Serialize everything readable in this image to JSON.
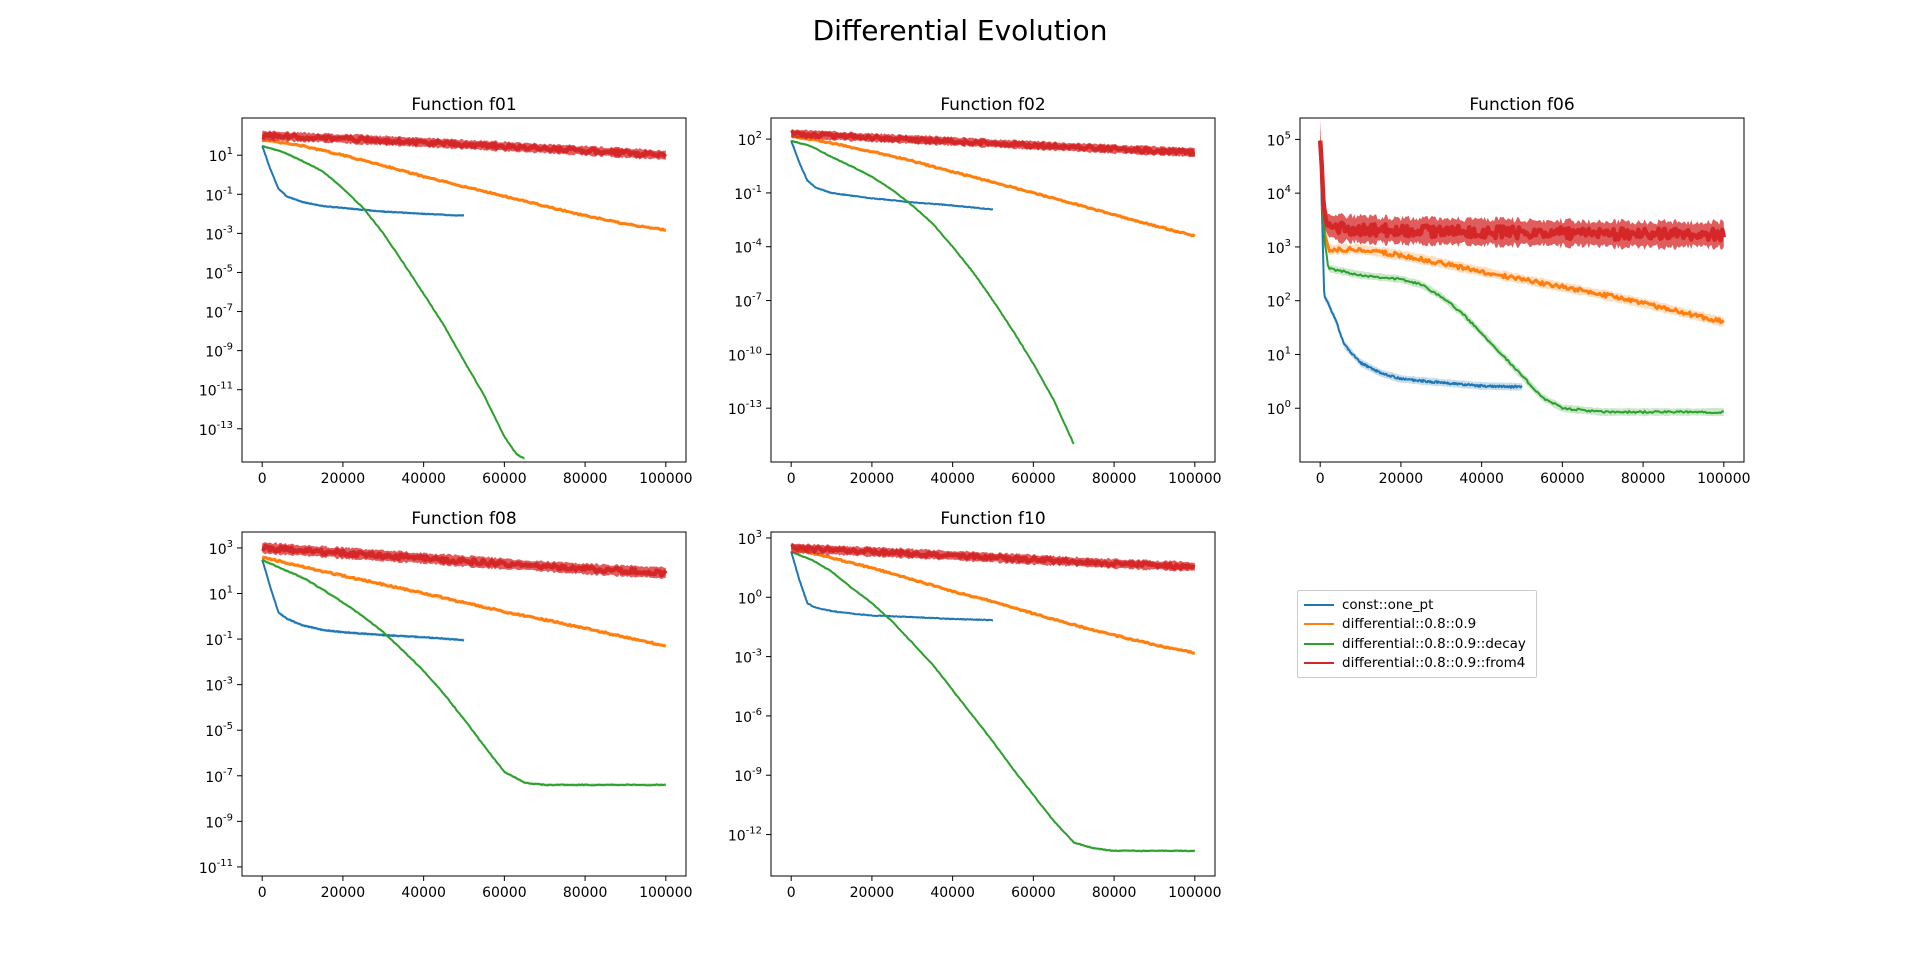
{
  "title": "Differential Evolution",
  "legend": {
    "placement": "right, below top-right subplot",
    "entries": [
      {
        "label": "const::one_pt",
        "color": "#1f77b4"
      },
      {
        "label": "differential::0.8::0.9",
        "color": "#ff7f0e"
      },
      {
        "label": "differential::0.8::0.9::decay",
        "color": "#2ca02c"
      },
      {
        "label": "differential::0.8::0.9::from4",
        "color": "#d62728"
      }
    ]
  },
  "chart_data": [
    {
      "type": "line",
      "title": "Function f01",
      "yscale": "log",
      "xlim": [
        -5000,
        105000
      ],
      "ylim": [
        2e-15,
        800
      ],
      "xticks": [
        0,
        20000,
        40000,
        60000,
        80000,
        100000
      ],
      "xtick_labels": [
        "0",
        "20000",
        "40000",
        "60000",
        "80000",
        "100000"
      ],
      "yticks": [
        10,
        0.1,
        0.001,
        1e-05,
        1e-07,
        1e-09,
        1e-11,
        1e-13
      ],
      "ytick_labels": [
        [
          "10",
          "1"
        ],
        [
          "10",
          "-1"
        ],
        [
          "10",
          "-3"
        ],
        [
          "10",
          "-5"
        ],
        [
          "10",
          "-7"
        ],
        [
          "10",
          "-9"
        ],
        [
          "10",
          "-11"
        ],
        [
          "10",
          "-13"
        ]
      ],
      "series": [
        {
          "name": "const::one_pt",
          "color": "#1f77b4",
          "band": true,
          "x": [
            0,
            2000,
            4000,
            6000,
            10000,
            15000,
            20000,
            30000,
            40000,
            50000
          ],
          "y": [
            30,
            2,
            0.2,
            0.08,
            0.04,
            0.025,
            0.02,
            0.013,
            0.01,
            0.008
          ]
        },
        {
          "name": "differential::0.8::0.9",
          "color": "#ff7f0e",
          "band": true,
          "x": [
            0,
            10000,
            20000,
            30000,
            40000,
            50000,
            60000,
            70000,
            80000,
            90000,
            100000
          ],
          "y": [
            60,
            30,
            10,
            3,
            0.8,
            0.25,
            0.08,
            0.025,
            0.008,
            0.003,
            0.0015
          ]
        },
        {
          "name": "differential::0.8::0.9::decay",
          "color": "#2ca02c",
          "band": true,
          "x": [
            0,
            5000,
            10000,
            15000,
            20000,
            25000,
            30000,
            35000,
            40000,
            45000,
            50000,
            55000,
            60000,
            63000,
            65000
          ],
          "y": [
            30,
            15,
            5,
            1.5,
            0.2,
            0.02,
            0.001,
            3e-05,
            8e-07,
            2e-08,
            3e-10,
            5e-12,
            4e-14,
            5e-15,
            3e-15
          ]
        },
        {
          "name": "differential::0.8::0.9::from4",
          "color": "#d62728",
          "band": true,
          "x": [
            0,
            20000,
            40000,
            60000,
            80000,
            100000
          ],
          "y": [
            100,
            70,
            45,
            28,
            17,
            10
          ]
        }
      ]
    },
    {
      "type": "line",
      "title": "Function f02",
      "yscale": "log",
      "xlim": [
        -5000,
        105000
      ],
      "ylim": [
        1e-16,
        1500
      ],
      "xticks": [
        0,
        20000,
        40000,
        60000,
        80000,
        100000
      ],
      "xtick_labels": [
        "0",
        "20000",
        "40000",
        "60000",
        "80000",
        "100000"
      ],
      "yticks": [
        100,
        0.1,
        0.0001,
        1e-07,
        1e-10,
        1e-13
      ],
      "ytick_labels": [
        [
          "10",
          "2"
        ],
        [
          "10",
          "-1"
        ],
        [
          "10",
          "-4"
        ],
        [
          "10",
          "-7"
        ],
        [
          "10",
          "-10"
        ],
        [
          "10",
          "-13"
        ]
      ],
      "series": [
        {
          "name": "const::one_pt",
          "color": "#1f77b4",
          "band": false,
          "x": [
            0,
            2000,
            4000,
            6000,
            10000,
            15000,
            20000,
            30000,
            40000,
            50000
          ],
          "y": [
            80,
            5,
            0.5,
            0.2,
            0.1,
            0.07,
            0.05,
            0.03,
            0.02,
            0.012
          ]
        },
        {
          "name": "differential::0.8::0.9",
          "color": "#ff7f0e",
          "band": true,
          "x": [
            0,
            10000,
            20000,
            30000,
            40000,
            50000,
            60000,
            70000,
            80000,
            90000,
            100000
          ],
          "y": [
            150,
            60,
            20,
            6,
            1.5,
            0.4,
            0.1,
            0.025,
            0.006,
            0.0015,
            0.0004
          ]
        },
        {
          "name": "differential::0.8::0.9::decay",
          "color": "#2ca02c",
          "band": true,
          "x": [
            0,
            5000,
            10000,
            15000,
            20000,
            25000,
            30000,
            35000,
            40000,
            45000,
            50000,
            55000,
            60000,
            65000,
            68000,
            70000
          ],
          "y": [
            80,
            40,
            10,
            3,
            0.8,
            0.15,
            0.02,
            0.002,
            0.0001,
            4e-06,
            1e-07,
            2e-09,
            3e-11,
            3e-13,
            1e-14,
            1e-15
          ]
        },
        {
          "name": "differential::0.8::0.9::from4",
          "color": "#d62728",
          "band": true,
          "x": [
            0,
            20000,
            40000,
            60000,
            80000,
            100000
          ],
          "y": [
            200,
            120,
            75,
            45,
            28,
            18
          ]
        }
      ]
    },
    {
      "type": "line",
      "title": "Function f06",
      "yscale": "log",
      "xlim": [
        -5000,
        105000
      ],
      "ylim": [
        0.1,
        250000
      ],
      "xticks": [
        0,
        20000,
        40000,
        60000,
        80000,
        100000
      ],
      "xtick_labels": [
        "0",
        "20000",
        "40000",
        "60000",
        "80000",
        "100000"
      ],
      "yticks": [
        100000,
        10000,
        1000,
        100,
        10,
        1
      ],
      "ytick_labels": [
        [
          "10",
          "5"
        ],
        [
          "10",
          "4"
        ],
        [
          "10",
          "3"
        ],
        [
          "10",
          "2"
        ],
        [
          "10",
          "1"
        ],
        [
          "10",
          "0"
        ]
      ],
      "series": [
        {
          "name": "const::one_pt",
          "color": "#1f77b4",
          "band": true,
          "x": [
            0,
            500,
            1000,
            2000,
            4000,
            6000,
            10000,
            15000,
            20000,
            30000,
            40000,
            50000
          ],
          "y": [
            100000,
            3000,
            120,
            90,
            40,
            15,
            7,
            4.5,
            3.5,
            3,
            2.6,
            2.5
          ]
        },
        {
          "name": "differential::0.8::0.9",
          "color": "#ff7f0e",
          "band": true,
          "x": [
            0,
            1000,
            2000,
            10000,
            20000,
            30000,
            40000,
            50000,
            60000,
            70000,
            80000,
            90000,
            100000
          ],
          "y": [
            100000,
            2000,
            900,
            900,
            700,
            500,
            350,
            250,
            180,
            130,
            90,
            60,
            40
          ]
        },
        {
          "name": "differential::0.8::0.9::decay",
          "color": "#2ca02c",
          "band": true,
          "x": [
            0,
            1000,
            2000,
            10000,
            20000,
            25000,
            30000,
            35000,
            40000,
            45000,
            50000,
            55000,
            60000,
            70000,
            100000
          ],
          "y": [
            100000,
            1500,
            400,
            300,
            250,
            200,
            120,
            60,
            25,
            10,
            4,
            1.6,
            1.0,
            0.85,
            0.85
          ]
        },
        {
          "name": "differential::0.8::0.9::from4",
          "color": "#d62728",
          "band": true,
          "x": [
            0,
            1000,
            2000,
            5000,
            20000,
            40000,
            60000,
            80000,
            100000
          ],
          "y": [
            120000,
            4000,
            2500,
            2200,
            2000,
            1900,
            1800,
            1700,
            1700
          ]
        }
      ]
    },
    {
      "type": "line",
      "title": "Function f08",
      "yscale": "log",
      "xlim": [
        -5000,
        105000
      ],
      "ylim": [
        4e-12,
        5000
      ],
      "xticks": [
        0,
        20000,
        40000,
        60000,
        80000,
        100000
      ],
      "xtick_labels": [
        "0",
        "20000",
        "40000",
        "60000",
        "80000",
        "100000"
      ],
      "yticks": [
        1000,
        10,
        0.1,
        0.001,
        1e-05,
        1e-07,
        1e-09,
        1e-11
      ],
      "ytick_labels": [
        [
          "10",
          "3"
        ],
        [
          "10",
          "1"
        ],
        [
          "10",
          "-1"
        ],
        [
          "10",
          "-3"
        ],
        [
          "10",
          "-5"
        ],
        [
          "10",
          "-7"
        ],
        [
          "10",
          "-9"
        ],
        [
          "10",
          "-11"
        ]
      ],
      "series": [
        {
          "name": "const::one_pt",
          "color": "#1f77b4",
          "band": true,
          "x": [
            0,
            2000,
            4000,
            6000,
            10000,
            15000,
            20000,
            30000,
            40000,
            50000
          ],
          "y": [
            300,
            20,
            1.5,
            0.8,
            0.4,
            0.25,
            0.2,
            0.15,
            0.12,
            0.09
          ]
        },
        {
          "name": "differential::0.8::0.9",
          "color": "#ff7f0e",
          "band": true,
          "x": [
            0,
            10000,
            20000,
            30000,
            40000,
            50000,
            60000,
            70000,
            80000,
            90000,
            100000
          ],
          "y": [
            400,
            150,
            60,
            25,
            10,
            4,
            1.6,
            0.7,
            0.3,
            0.12,
            0.05
          ]
        },
        {
          "name": "differential::0.8::0.9::decay",
          "color": "#2ca02c",
          "band": true,
          "x": [
            0,
            5000,
            10000,
            15000,
            20000,
            25000,
            30000,
            35000,
            40000,
            45000,
            50000,
            55000,
            60000,
            65000,
            70000,
            100000
          ],
          "y": [
            300,
            120,
            50,
            15,
            4,
            1,
            0.2,
            0.03,
            0.004,
            0.0004,
            3e-05,
            2e-06,
            1.5e-07,
            5e-08,
            4e-08,
            4e-08
          ]
        },
        {
          "name": "differential::0.8::0.9::from4",
          "color": "#d62728",
          "band": true,
          "x": [
            0,
            20000,
            40000,
            60000,
            80000,
            100000
          ],
          "y": [
            1000,
            600,
            350,
            200,
            120,
            80
          ]
        }
      ]
    },
    {
      "type": "line",
      "title": "Function f10",
      "yscale": "log",
      "xlim": [
        -5000,
        105000
      ],
      "ylim": [
        8e-15,
        2000
      ],
      "xticks": [
        0,
        20000,
        40000,
        60000,
        80000,
        100000
      ],
      "xtick_labels": [
        "0",
        "20000",
        "40000",
        "60000",
        "80000",
        "100000"
      ],
      "yticks": [
        1000,
        1,
        0.001,
        1e-06,
        1e-09,
        1e-12
      ],
      "ytick_labels": [
        [
          "10",
          "3"
        ],
        [
          "10",
          "0"
        ],
        [
          "10",
          "-3"
        ],
        [
          "10",
          "-6"
        ],
        [
          "10",
          "-9"
        ],
        [
          "10",
          "-12"
        ]
      ],
      "series": [
        {
          "name": "const::one_pt",
          "color": "#1f77b4",
          "band": false,
          "x": [
            0,
            2000,
            4000,
            6000,
            10000,
            15000,
            20000,
            30000,
            40000,
            50000
          ],
          "y": [
            200,
            8,
            0.5,
            0.3,
            0.2,
            0.15,
            0.12,
            0.1,
            0.08,
            0.07
          ]
        },
        {
          "name": "differential::0.8::0.9",
          "color": "#ff7f0e",
          "band": true,
          "x": [
            0,
            10000,
            20000,
            30000,
            40000,
            50000,
            60000,
            70000,
            80000,
            90000,
            100000
          ],
          "y": [
            300,
            100,
            30,
            8,
            2,
            0.6,
            0.15,
            0.04,
            0.012,
            0.004,
            0.0015
          ]
        },
        {
          "name": "differential::0.8::0.9::decay",
          "color": "#2ca02c",
          "band": true,
          "x": [
            0,
            5000,
            10000,
            15000,
            20000,
            25000,
            30000,
            35000,
            40000,
            45000,
            50000,
            55000,
            60000,
            65000,
            70000,
            75000,
            80000,
            100000
          ],
          "y": [
            200,
            80,
            20,
            3,
            0.5,
            0.06,
            0.005,
            0.0004,
            2e-05,
            1e-06,
            5e-08,
            2e-09,
            1e-10,
            5e-12,
            4e-13,
            2e-13,
            1.5e-13,
            1.5e-13
          ]
        },
        {
          "name": "differential::0.8::0.9::from4",
          "color": "#d62728",
          "band": true,
          "x": [
            0,
            20000,
            40000,
            60000,
            80000,
            100000
          ],
          "y": [
            300,
            200,
            130,
            80,
            50,
            35
          ]
        }
      ]
    }
  ]
}
